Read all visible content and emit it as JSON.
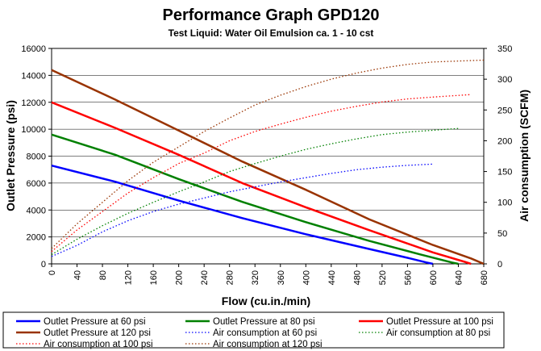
{
  "chart_data": {
    "type": "line",
    "title": "Performance Graph GPD120",
    "subtitle": "Test Liquid: Water Oil Emulsion ca. 1 - 10 cst",
    "xlabel": "Flow (cu.in./min)",
    "ylabel": "Outlet Pressure (psi)",
    "y2label": "Air consumption (SCFM)",
    "xlim": [
      0,
      680
    ],
    "ylim": [
      0,
      16000
    ],
    "y2lim": [
      0,
      350
    ],
    "xticks": [
      0,
      40,
      80,
      120,
      160,
      200,
      240,
      280,
      320,
      360,
      400,
      440,
      480,
      520,
      560,
      600,
      640,
      680
    ],
    "yticks": [
      0,
      2000,
      4000,
      6000,
      8000,
      10000,
      12000,
      14000,
      16000
    ],
    "y2ticks": [
      0,
      50,
      100,
      150,
      200,
      250,
      300,
      350
    ],
    "xtick_labels": [
      "0",
      "40",
      "80",
      "120",
      "160",
      "200",
      "240",
      "280",
      "320",
      "360",
      "400",
      "440",
      "480",
      "520",
      "560",
      "600",
      "640",
      "680"
    ],
    "ytick_labels": [
      "0",
      "2000",
      "4000",
      "6000",
      "8000",
      "10000",
      "12000",
      "14000",
      "16000"
    ],
    "y2tick_labels": [
      "0",
      "50",
      "100",
      "150",
      "200",
      "250",
      "300",
      "350"
    ],
    "grid": "horizontal",
    "legend_position": "bottom",
    "series": [
      {
        "name": "Outlet Pressure at 60 psi",
        "axis": "left",
        "style": "solid",
        "color": "#0000ff",
        "x": [
          0,
          100,
          200,
          300,
          400,
          500,
          560,
          590,
          600
        ],
        "y": [
          7300,
          6100,
          4700,
          3400,
          2200,
          1100,
          450,
          100,
          0
        ]
      },
      {
        "name": "Outlet Pressure at 80 psi",
        "axis": "left",
        "style": "solid",
        "color": "#008000",
        "x": [
          0,
          100,
          200,
          300,
          400,
          500,
          580,
          630,
          640
        ],
        "y": [
          9600,
          8100,
          6300,
          4600,
          3100,
          1700,
          700,
          100,
          0
        ]
      },
      {
        "name": "Outlet Pressure at 100 psi",
        "axis": "left",
        "style": "solid",
        "color": "#ff0000",
        "x": [
          0,
          100,
          200,
          300,
          400,
          500,
          600,
          650,
          660
        ],
        "y": [
          12000,
          10100,
          8100,
          6000,
          4200,
          2500,
          850,
          150,
          0
        ]
      },
      {
        "name": "Outlet Pressure at 120 psi",
        "axis": "left",
        "style": "solid",
        "color": "#993300",
        "x": [
          0,
          100,
          200,
          300,
          400,
          500,
          600,
          660,
          680
        ],
        "y": [
          14400,
          12200,
          9900,
          7600,
          5500,
          3300,
          1400,
          400,
          0
        ]
      },
      {
        "name": "Air consumption at 60 psi",
        "axis": "right",
        "style": "dotted",
        "color": "#0000ff",
        "x": [
          0,
          40,
          80,
          120,
          160,
          200,
          240,
          280,
          320,
          360,
          400,
          440,
          480,
          520,
          560,
          600
        ],
        "y": [
          12,
          30,
          52,
          70,
          85,
          97,
          107,
          117,
          125,
          133,
          140,
          147,
          153,
          157,
          160,
          162
        ]
      },
      {
        "name": "Air consumption at 80 psi",
        "axis": "right",
        "style": "dotted",
        "color": "#008000",
        "x": [
          0,
          40,
          80,
          120,
          160,
          200,
          240,
          280,
          320,
          360,
          400,
          440,
          480,
          520,
          560,
          640
        ],
        "y": [
          15,
          40,
          62,
          82,
          100,
          117,
          133,
          150,
          163,
          175,
          186,
          195,
          203,
          210,
          214,
          220
        ]
      },
      {
        "name": "Air consumption at 100 psi",
        "axis": "right",
        "style": "dotted",
        "color": "#ff0000",
        "x": [
          0,
          40,
          80,
          120,
          160,
          200,
          240,
          280,
          320,
          360,
          400,
          440,
          480,
          520,
          560,
          600,
          660
        ],
        "y": [
          20,
          55,
          85,
          115,
          140,
          163,
          180,
          200,
          215,
          227,
          238,
          248,
          256,
          263,
          268,
          271,
          275
        ]
      },
      {
        "name": "Air consumption at 120 psi",
        "axis": "right",
        "style": "dotted",
        "color": "#993300",
        "x": [
          0,
          40,
          80,
          120,
          160,
          200,
          240,
          280,
          320,
          360,
          400,
          440,
          480,
          520,
          560,
          600,
          680
        ],
        "y": [
          25,
          65,
          100,
          135,
          165,
          190,
          215,
          237,
          258,
          274,
          288,
          300,
          310,
          318,
          324,
          328,
          331
        ]
      }
    ]
  }
}
